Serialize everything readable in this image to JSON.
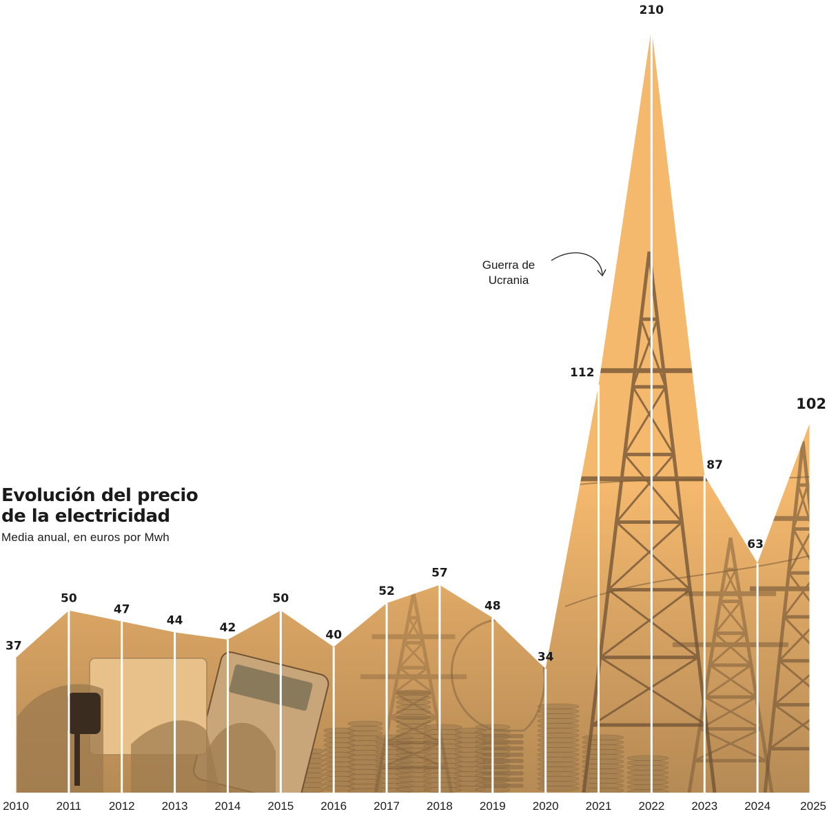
{
  "title_line1": "Evolución del precio",
  "title_line2": "de la electricidad",
  "subtitle": "Media anual, en euros por Mwh",
  "annotation": {
    "line1": "Guerra de",
    "line2": "Ucrania",
    "year": "2022"
  },
  "colors": {
    "area": "#f5b96e",
    "area_dark": "#d9944a",
    "divider": "#ffffff",
    "text": "#1a1a1a",
    "photo_tint": "#9c7a4e"
  },
  "chart_data": {
    "type": "area",
    "title": "Evolución del precio de la electricidad",
    "subtitle": "Media anual, en euros por Mwh",
    "x": [
      "2010",
      "2011",
      "2012",
      "2013",
      "2014",
      "2015",
      "2016",
      "2017",
      "2018",
      "2019",
      "2020",
      "2021",
      "2022",
      "2023",
      "2024",
      "2025"
    ],
    "series": [
      {
        "values": [
          37,
          50,
          47,
          44,
          42,
          50,
          40,
          52,
          57,
          48,
          34,
          112,
          210,
          87,
          63,
          102
        ]
      }
    ],
    "ylim": [
      0,
      210
    ],
    "grid": false,
    "legend": "none"
  }
}
